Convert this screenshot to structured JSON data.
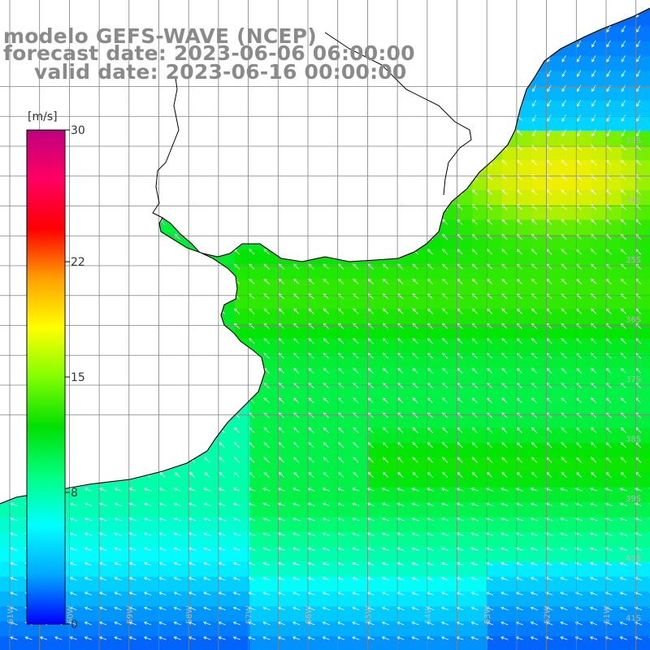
{
  "title": {
    "line1": "modelo GEFS-WAVE (NCEP)",
    "line2": "forecast date: 2023-06-06 06:00:00",
    "line3": "valid date: 2023-06-16 00:00:00"
  },
  "colorbar": {
    "unit": "[m/s]",
    "ticks": [
      {
        "label": "30",
        "value": 30
      },
      {
        "label": "22",
        "value": 22
      },
      {
        "label": "15",
        "value": 15
      },
      {
        "label": "8",
        "value": 8
      },
      {
        "label": "0",
        "value": 0
      }
    ],
    "colors": [
      "#0000ff",
      "#00a8ff",
      "#00ffff",
      "#00ff80",
      "#00e000",
      "#80ff00",
      "#ffff00",
      "#ffa000",
      "#ff0000",
      "#ff0060",
      "#c00080"
    ]
  },
  "lat_labels": [
    "33S",
    "34S",
    "35S",
    "36S",
    "37S",
    "38S",
    "39S",
    "40S",
    "41S"
  ],
  "lon_labels": [
    "61W",
    "60W",
    "59W",
    "58W",
    "57W",
    "56W",
    "55W",
    "54W",
    "53W",
    "52W",
    "51W",
    "50W"
  ],
  "colors": {
    "land": "#ffffff",
    "coast": "#000000",
    "grid": "#808080",
    "arrow": "#ffffff",
    "title": "#8a8a8a"
  }
}
